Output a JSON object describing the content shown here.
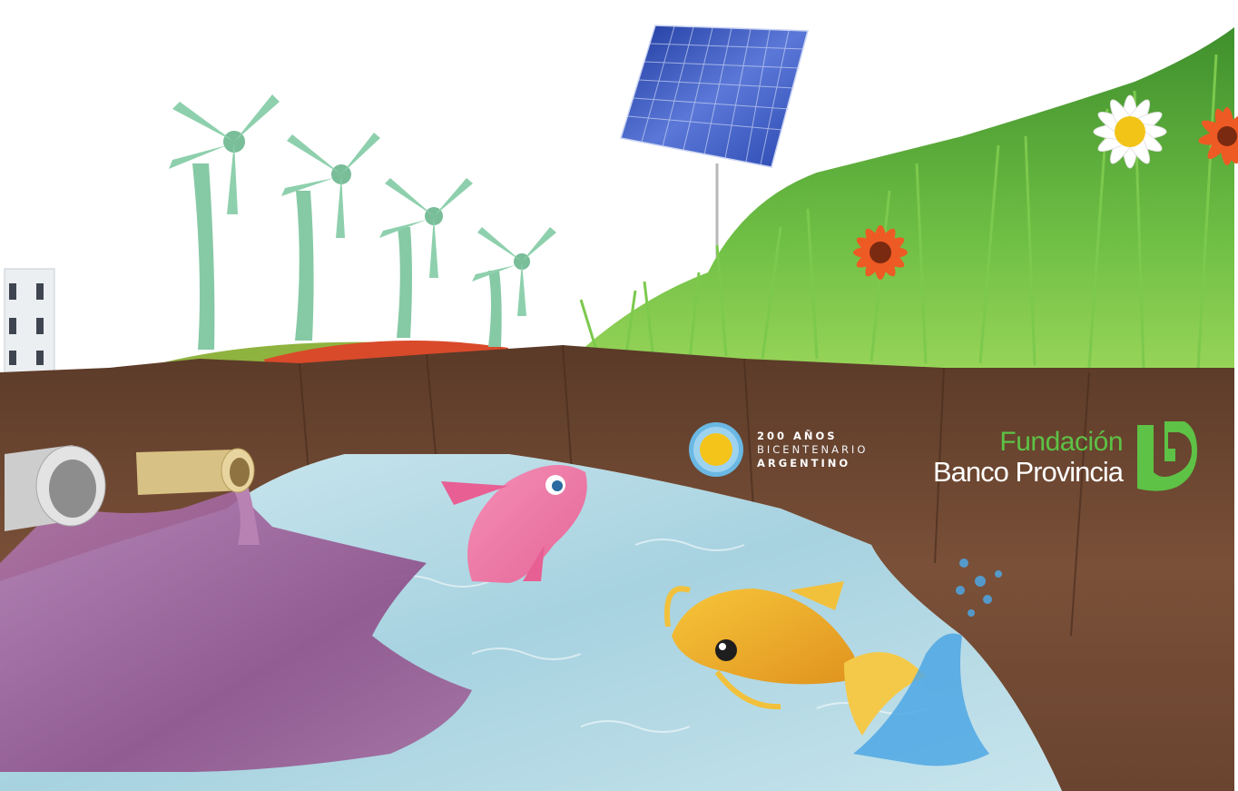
{
  "bicentenario": {
    "line1": "200 AÑOS",
    "line2": "BICENTENARIO",
    "line3": "ARGENTINO"
  },
  "fundacion": {
    "line1": "Fundación",
    "line2": "Banco Provincia"
  },
  "colors": {
    "sky": "#ffffff",
    "grass": "#5aa838",
    "soil": "#6b4630",
    "water": "#a9d3e2",
    "pollution": "#9b5f97",
    "turbine": "#86c9a5",
    "solar_panel": "#2e4fb8",
    "fundacion_green": "#5dc245"
  }
}
